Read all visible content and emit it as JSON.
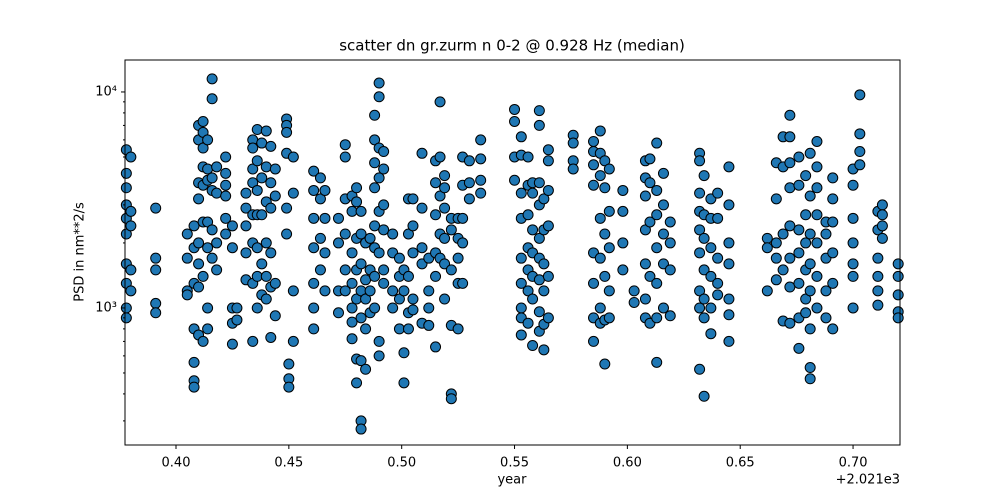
{
  "chart_data": {
    "type": "scatter",
    "title": "scatter dn gr.zurm n 0-2 @ 0.928 Hz (median)",
    "xlabel": "year",
    "ylabel": "PSD in nm**2/s",
    "x_offset_label": "+2.021e3",
    "xlim": [
      0.3774,
      0.7208
    ],
    "ylim": [
      232,
      14060
    ],
    "log_y": true,
    "xticks": [
      {
        "value": 0.4,
        "label": "0.40"
      },
      {
        "value": 0.45,
        "label": "0.45"
      },
      {
        "value": 0.5,
        "label": "0.50"
      },
      {
        "value": 0.55,
        "label": "0.55"
      },
      {
        "value": 0.6,
        "label": "0.60"
      },
      {
        "value": 0.65,
        "label": "0.65"
      },
      {
        "value": 0.7,
        "label": "0.70"
      }
    ],
    "yticks": [
      {
        "value": 1000,
        "label": "10³"
      },
      {
        "value": 10000,
        "label": "10⁴"
      }
    ],
    "yminor_ticks": [
      300,
      400,
      500,
      600,
      700,
      800,
      900,
      2000,
      3000,
      4000,
      5000,
      6000,
      7000,
      8000,
      9000
    ],
    "series": [
      {
        "color": "#1f77b4",
        "x": [
          0.378,
          0.378,
          0.378,
          0.378,
          0.378,
          0.378,
          0.378,
          0.378,
          0.378,
          0.378,
          0.38,
          0.38,
          0.38,
          0.38,
          0.38,
          0.391,
          0.391,
          0.391,
          0.391,
          0.391,
          0.405,
          0.405,
          0.405,
          0.405,
          0.408,
          0.408,
          0.408,
          0.408,
          0.408,
          0.408,
          0.408,
          0.41,
          0.41,
          0.41,
          0.41,
          0.41,
          0.41,
          0.41,
          0.41,
          0.412,
          0.412,
          0.412,
          0.412,
          0.412,
          0.412,
          0.412,
          0.412,
          0.414,
          0.414,
          0.414,
          0.414,
          0.414,
          0.414,
          0.414,
          0.416,
          0.416,
          0.416,
          0.416,
          0.416,
          0.416,
          0.418,
          0.418,
          0.418,
          0.418,
          0.422,
          0.422,
          0.422,
          0.422,
          0.422,
          0.422,
          0.425,
          0.425,
          0.425,
          0.425,
          0.425,
          0.427,
          0.427,
          0.431,
          0.431,
          0.431,
          0.431,
          0.431,
          0.434,
          0.434,
          0.434,
          0.434,
          0.434,
          0.434,
          0.434,
          0.434,
          0.436,
          0.436,
          0.436,
          0.436,
          0.436,
          0.436,
          0.436,
          0.438,
          0.438,
          0.438,
          0.438,
          0.438,
          0.44,
          0.44,
          0.44,
          0.44,
          0.44,
          0.44,
          0.442,
          0.442,
          0.442,
          0.442,
          0.442,
          0.442,
          0.444,
          0.444,
          0.444,
          0.444,
          0.449,
          0.449,
          0.449,
          0.449,
          0.449,
          0.449,
          0.45,
          0.45,
          0.45,
          0.452,
          0.452,
          0.452,
          0.452,
          0.461,
          0.461,
          0.461,
          0.461,
          0.461,
          0.461,
          0.461,
          0.464,
          0.464,
          0.464,
          0.464,
          0.466,
          0.466,
          0.466,
          0.466,
          0.472,
          0.472,
          0.472,
          0.472,
          0.475,
          0.475,
          0.475,
          0.475,
          0.475,
          0.475,
          0.478,
          0.478,
          0.478,
          0.478,
          0.478,
          0.478,
          0.478,
          0.48,
          0.48,
          0.48,
          0.48,
          0.48,
          0.48,
          0.48,
          0.482,
          0.482,
          0.482,
          0.482,
          0.482,
          0.482,
          0.482,
          0.482,
          0.484,
          0.484,
          0.484,
          0.484,
          0.484,
          0.486,
          0.486,
          0.486,
          0.486,
          0.488,
          0.488,
          0.488,
          0.488,
          0.488,
          0.488,
          0.488,
          0.488,
          0.49,
          0.49,
          0.49,
          0.49,
          0.49,
          0.49,
          0.49,
          0.49,
          0.492,
          0.492,
          0.492,
          0.492,
          0.492,
          0.492,
          0.496,
          0.496,
          0.496,
          0.496,
          0.499,
          0.499,
          0.499,
          0.499,
          0.501,
          0.501,
          0.501,
          0.501,
          0.503,
          0.503,
          0.503,
          0.503,
          0.503,
          0.505,
          0.505,
          0.505,
          0.505,
          0.505,
          0.509,
          0.509,
          0.509,
          0.509,
          0.509,
          0.512,
          0.512,
          0.512,
          0.512,
          0.515,
          0.515,
          0.515,
          0.515,
          0.515,
          0.515,
          0.517,
          0.517,
          0.517,
          0.517,
          0.517,
          0.519,
          0.519,
          0.519,
          0.519,
          0.519,
          0.519,
          0.522,
          0.522,
          0.522,
          0.522,
          0.522,
          0.522,
          0.525,
          0.525,
          0.525,
          0.525,
          0.525,
          0.527,
          0.527,
          0.527,
          0.527,
          0.527,
          0.53,
          0.53,
          0.53,
          0.535,
          0.535,
          0.535,
          0.535,
          0.55,
          0.55,
          0.55,
          0.55,
          0.553,
          0.553,
          0.553,
          0.553,
          0.553,
          0.553,
          0.553,
          0.553,
          0.553,
          0.556,
          0.556,
          0.556,
          0.556,
          0.556,
          0.556,
          0.556,
          0.558,
          0.558,
          0.558,
          0.558,
          0.558,
          0.558,
          0.558,
          0.561,
          0.561,
          0.561,
          0.561,
          0.561,
          0.561,
          0.561,
          0.561,
          0.561,
          0.563,
          0.563,
          0.563,
          0.563,
          0.563,
          0.563,
          0.565,
          0.565,
          0.565,
          0.565,
          0.565,
          0.565,
          0.576,
          0.576,
          0.576,
          0.576,
          0.585,
          0.585,
          0.585,
          0.585,
          0.585,
          0.585,
          0.585,
          0.585,
          0.588,
          0.588,
          0.588,
          0.588,
          0.588,
          0.588,
          0.588,
          0.59,
          0.59,
          0.59,
          0.59,
          0.59,
          0.59,
          0.592,
          0.592,
          0.592,
          0.592,
          0.592,
          0.598,
          0.598,
          0.598,
          0.598,
          0.603,
          0.603,
          0.608,
          0.608,
          0.608,
          0.608,
          0.608,
          0.608,
          0.608,
          0.61,
          0.61,
          0.61,
          0.61,
          0.61,
          0.613,
          0.613,
          0.613,
          0.613,
          0.613,
          0.613,
          0.613,
          0.616,
          0.616,
          0.616,
          0.616,
          0.616,
          0.619,
          0.619,
          0.619,
          0.619,
          0.632,
          0.632,
          0.632,
          0.632,
          0.632,
          0.632,
          0.632,
          0.632,
          0.632,
          0.634,
          0.634,
          0.634,
          0.634,
          0.634,
          0.634,
          0.634,
          0.637,
          0.637,
          0.637,
          0.637,
          0.637,
          0.637,
          0.64,
          0.64,
          0.64,
          0.64,
          0.64,
          0.645,
          0.645,
          0.645,
          0.645,
          0.645,
          0.645,
          0.645,
          0.662,
          0.662,
          0.662,
          0.666,
          0.666,
          0.666,
          0.666,
          0.666,
          0.669,
          0.669,
          0.669,
          0.669,
          0.669,
          0.672,
          0.672,
          0.672,
          0.672,
          0.672,
          0.672,
          0.672,
          0.672,
          0.676,
          0.676,
          0.676,
          0.676,
          0.676,
          0.676,
          0.676,
          0.679,
          0.679,
          0.679,
          0.679,
          0.679,
          0.679,
          0.681,
          0.681,
          0.681,
          0.681,
          0.681,
          0.681,
          0.681,
          0.681,
          0.684,
          0.684,
          0.684,
          0.684,
          0.684,
          0.684,
          0.684,
          0.688,
          0.688,
          0.688,
          0.688,
          0.688,
          0.691,
          0.691,
          0.691,
          0.691,
          0.691,
          0.691,
          0.7,
          0.7,
          0.7,
          0.7,
          0.7,
          0.7,
          0.7,
          0.703,
          0.703,
          0.703,
          0.703,
          0.711,
          0.711,
          0.711,
          0.711,
          0.711,
          0.711,
          0.713,
          0.713,
          0.713,
          0.713,
          0.72,
          0.72,
          0.72,
          0.72,
          0.72
        ],
        "values": [
          5400,
          4200,
          3600,
          3000,
          2600,
          2200,
          1600,
          1300,
          1000,
          900,
          5000,
          2800,
          2400,
          1500,
          1200,
          2900,
          1700,
          1500,
          1050,
          950,
          2200,
          1700,
          1200,
          1150,
          2400,
          1900,
          1300,
          800,
          560,
          460,
          430,
          7000,
          6000,
          3800,
          3200,
          2000,
          1600,
          1250,
          750,
          7300,
          6500,
          5500,
          4500,
          3700,
          2500,
          1400,
          700,
          6000,
          4400,
          3900,
          2500,
          1900,
          1000,
          800,
          11500,
          9300,
          4000,
          3500,
          2300,
          1700,
          4500,
          3400,
          2000,
          1500,
          5000,
          4200,
          3700,
          3300,
          2600,
          2200,
          2400,
          1900,
          1000,
          850,
          680,
          1000,
          880,
          3400,
          2900,
          2400,
          1800,
          1350,
          6000,
          5500,
          4400,
          3800,
          2700,
          2000,
          1300,
          700,
          6700,
          4800,
          3500,
          2700,
          1900,
          1400,
          1000,
          5800,
          4000,
          2700,
          1600,
          1150,
          6600,
          4500,
          3100,
          2000,
          1400,
          1100,
          5600,
          3800,
          2900,
          1800,
          1250,
          730,
          4400,
          3300,
          1300,
          920,
          7500,
          7000,
          6500,
          5200,
          2900,
          2200,
          550,
          470,
          430,
          5000,
          3400,
          1200,
          700,
          4300,
          3500,
          2600,
          1900,
          1300,
          1000,
          800,
          4000,
          3200,
          2100,
          1500,
          3500,
          2600,
          1800,
          1200,
          2600,
          2000,
          1200,
          950,
          5700,
          5000,
          3200,
          2200,
          1500,
          1200,
          3300,
          2800,
          1800,
          1300,
          1000,
          860,
          720,
          3600,
          3100,
          2100,
          1500,
          1100,
          580,
          450,
          2800,
          2200,
          1600,
          1200,
          900,
          570,
          300,
          275,
          2000,
          1350,
          1100,
          800,
          520,
          2100,
          1500,
          1200,
          950,
          7800,
          6000,
          4700,
          3600,
          2400,
          1900,
          1400,
          1000,
          11000,
          9500,
          5500,
          4000,
          2800,
          1800,
          700,
          600,
          5300,
          4400,
          3000,
          2300,
          1500,
          1300,
          2200,
          1800,
          1200,
          1000,
          1700,
          1400,
          1100,
          800,
          1500,
          1200,
          620,
          450,
          3200,
          2200,
          1400,
          950,
          800,
          3200,
          2400,
          1800,
          1100,
          980,
          5200,
          2900,
          1900,
          1600,
          850,
          1700,
          1200,
          1000,
          830,
          4800,
          3800,
          2700,
          1800,
          1400,
          660,
          9000,
          5000,
          3300,
          2200,
          1700,
          4100,
          3600,
          2900,
          2100,
          1600,
          1100,
          2600,
          2300,
          1500,
          830,
          400,
          380,
          2600,
          2100,
          1700,
          1300,
          800,
          5000,
          3700,
          2600,
          2000,
          1300,
          4800,
          3800,
          3200,
          6000,
          4900,
          3900,
          3400,
          8300,
          7300,
          5000,
          3900,
          6200,
          5100,
          3400,
          2600,
          1700,
          1300,
          1000,
          900,
          750,
          5000,
          3700,
          2700,
          1900,
          1500,
          1200,
          850,
          3800,
          3400,
          2300,
          1800,
          1400,
          1100,
          670,
          8200,
          7000,
          3800,
          3000,
          2100,
          1700,
          1350,
          960,
          780,
          3200,
          2300,
          1600,
          1200,
          840,
          640,
          5400,
          4800,
          3500,
          2400,
          1400,
          900,
          6300,
          5800,
          4800,
          4400,
          5900,
          5300,
          4600,
          3700,
          1800,
          1300,
          900,
          700,
          6600,
          5200,
          4100,
          2600,
          1700,
          1000,
          850,
          4800,
          3600,
          2200,
          1400,
          880,
          550,
          4400,
          2800,
          1900,
          1200,
          900,
          3500,
          2800,
          2000,
          1500,
          1200,
          1060,
          4800,
          4000,
          3300,
          2300,
          1600,
          1100,
          900,
          4900,
          3800,
          2500,
          1400,
          850,
          5800,
          3500,
          2700,
          1900,
          1300,
          900,
          560,
          4200,
          3000,
          2200,
          1600,
          1000,
          2500,
          2000,
          1500,
          920,
          5200,
          4800,
          3400,
          2800,
          2300,
          1800,
          1200,
          1000,
          520,
          4100,
          2700,
          2100,
          1500,
          1100,
          900,
          390,
          3200,
          2600,
          1900,
          1400,
          1000,
          760,
          3400,
          2600,
          1700,
          1300,
          1150,
          4500,
          3000,
          2000,
          1600,
          1100,
          930,
          700,
          2100,
          1900,
          1200,
          4700,
          3200,
          2000,
          1700,
          1350,
          6200,
          4500,
          2200,
          1500,
          870,
          7800,
          6200,
          4700,
          3600,
          2400,
          1700,
          1250,
          850,
          5000,
          3700,
          2300,
          1800,
          1300,
          900,
          650,
          4100,
          2700,
          2000,
          1500,
          1100,
          950,
          5200,
          3300,
          2200,
          1600,
          1200,
          800,
          530,
          470,
          5900,
          4500,
          3600,
          2700,
          2000,
          1400,
          1000,
          2500,
          2200,
          1700,
          1200,
          900,
          4000,
          3200,
          2500,
          1800,
          1300,
          800,
          4400,
          3700,
          2600,
          2000,
          1600,
          1400,
          1000,
          9700,
          6400,
          5300,
          4600,
          2800,
          2300,
          1700,
          1400,
          1200,
          1030,
          3000,
          2700,
          2400,
          2100,
          1600,
          1400,
          1150,
          960,
          900
        ]
      }
    ]
  }
}
